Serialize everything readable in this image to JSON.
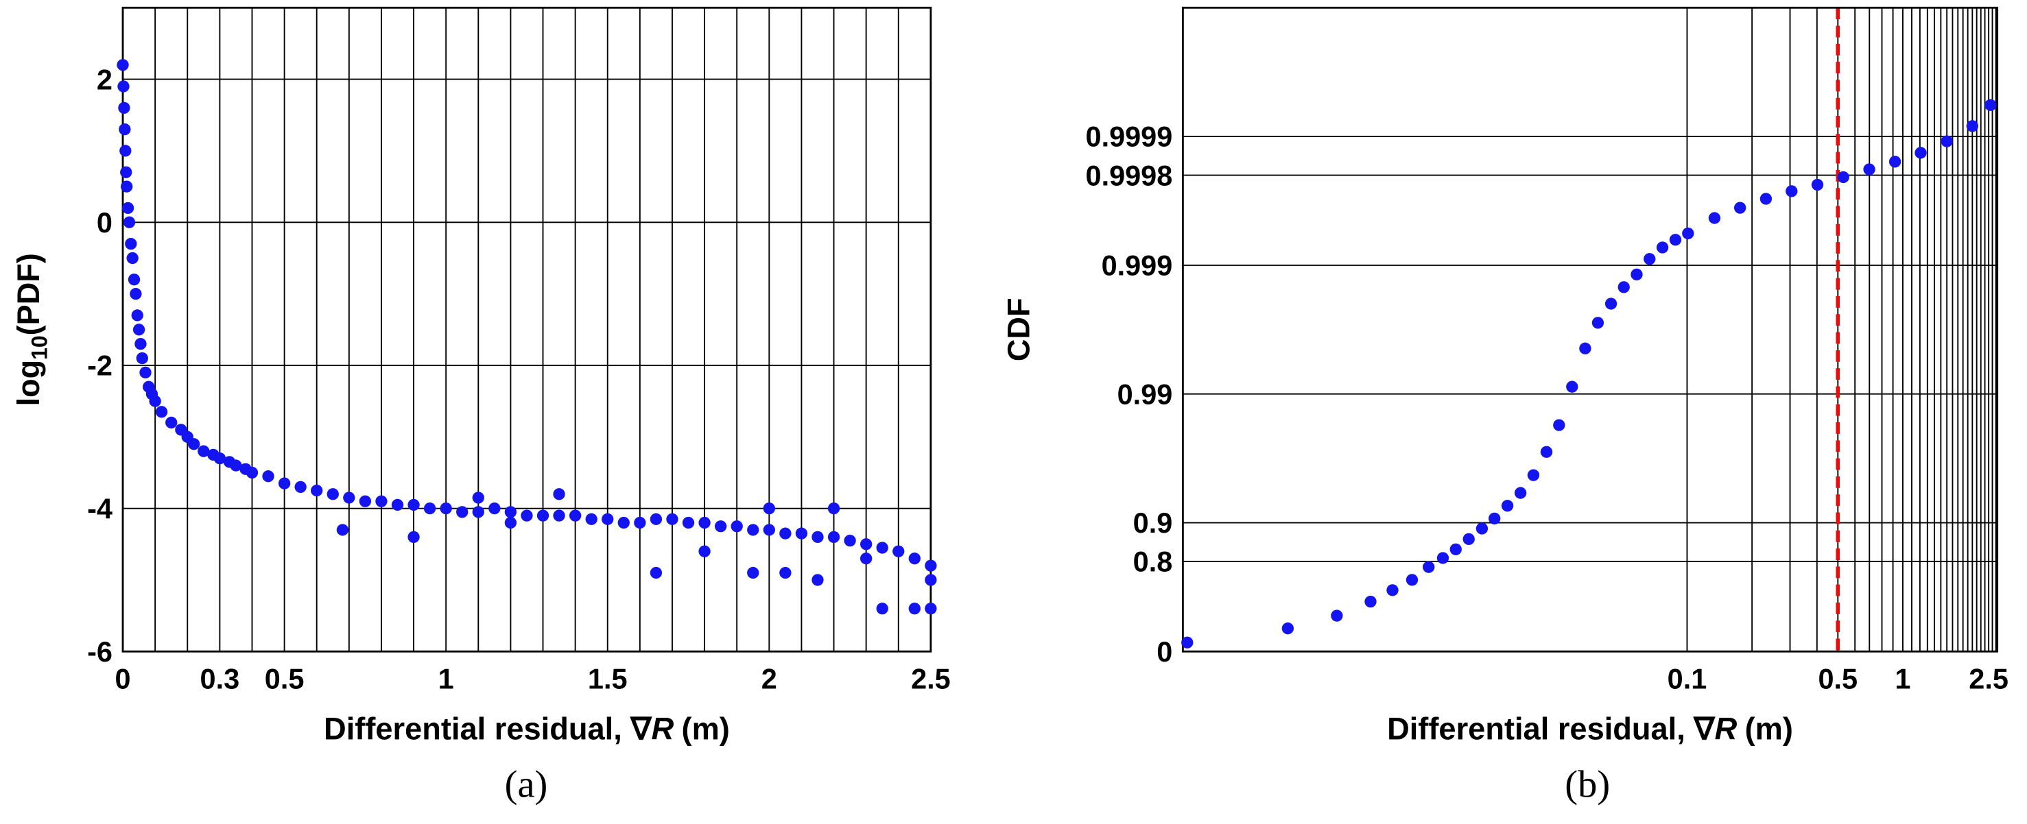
{
  "chart_data": [
    {
      "type": "scatter",
      "caption": "(a)",
      "xlabel": [
        "Differential residual, ∇",
        "R",
        "(m)"
      ],
      "ylabel": [
        "log",
        "10",
        "(PDF)"
      ],
      "color": "#1414f0",
      "xscale": "linear",
      "yscale": "linear",
      "xlim": [
        0,
        2.5
      ],
      "ylim": [
        -6,
        3
      ],
      "xticks": [
        0,
        0.3,
        0.5,
        1,
        1.5,
        2,
        2.5
      ],
      "yticks": [
        2,
        0,
        -2,
        -4,
        -6
      ],
      "xgrid": [
        0,
        0.1,
        0.2,
        0.3,
        0.4,
        0.5,
        0.6,
        0.7,
        0.8,
        0.9,
        1,
        1.1,
        1.2,
        1.3,
        1.4,
        1.5,
        1.6,
        1.7,
        1.8,
        1.9,
        2,
        2.1,
        2.2,
        2.3,
        2.4,
        2.5
      ],
      "x": [
        0,
        0.002,
        0.004,
        0.006,
        0.008,
        0.01,
        0.012,
        0.016,
        0.02,
        0.025,
        0.03,
        0.035,
        0.04,
        0.045,
        0.05,
        0.055,
        0.06,
        0.07,
        0.08,
        0.09,
        0.1,
        0.12,
        0.15,
        0.18,
        0.2,
        0.22,
        0.25,
        0.28,
        0.3,
        0.33,
        0.35,
        0.38,
        0.4,
        0.45,
        0.5,
        0.55,
        0.6,
        0.65,
        0.7,
        0.75,
        0.8,
        0.85,
        0.9,
        0.95,
        1.0,
        1.05,
        1.1,
        1.15,
        1.2,
        1.25,
        1.3,
        1.35,
        1.4,
        1.45,
        1.5,
        1.55,
        1.6,
        1.65,
        1.7,
        1.75,
        1.8,
        1.85,
        1.9,
        1.95,
        2.0,
        2.05,
        2.1,
        2.15,
        2.2,
        2.25,
        2.3,
        2.35,
        2.4,
        2.45,
        2.5,
        0.68,
        0.9,
        1.1,
        1.2,
        1.35,
        1.65,
        1.8,
        1.95,
        2.0,
        2.05,
        2.15,
        2.2,
        2.3,
        2.35,
        2.45,
        2.5,
        2.5
      ],
      "values": [
        2.2,
        1.9,
        1.6,
        1.3,
        1.0,
        0.7,
        0.5,
        0.2,
        0,
        -0.3,
        -0.5,
        -0.8,
        -1.0,
        -1.3,
        -1.5,
        -1.7,
        -1.9,
        -2.1,
        -2.3,
        -2.4,
        -2.5,
        -2.65,
        -2.8,
        -2.9,
        -3.0,
        -3.1,
        -3.2,
        -3.25,
        -3.3,
        -3.35,
        -3.4,
        -3.45,
        -3.5,
        -3.55,
        -3.65,
        -3.7,
        -3.75,
        -3.8,
        -3.85,
        -3.9,
        -3.9,
        -3.95,
        -3.95,
        -4.0,
        -4.0,
        -4.05,
        -4.05,
        -4.0,
        -4.05,
        -4.1,
        -4.1,
        -4.1,
        -4.1,
        -4.15,
        -4.15,
        -4.2,
        -4.2,
        -4.15,
        -4.15,
        -4.2,
        -4.2,
        -4.25,
        -4.25,
        -4.3,
        -4.3,
        -4.35,
        -4.35,
        -4.4,
        -4.4,
        -4.45,
        -4.5,
        -4.55,
        -4.6,
        -4.7,
        -4.8,
        -4.3,
        -4.4,
        -3.85,
        -4.2,
        -3.8,
        -4.9,
        -4.6,
        -4.9,
        -4.0,
        -4.9,
        -5.0,
        -4.0,
        -4.7,
        -5.4,
        -5.4,
        -5.4,
        -5.0
      ]
    },
    {
      "type": "scatter",
      "caption": "(b)",
      "xlabel": [
        "Differential residual, ∇",
        "R",
        "(m)"
      ],
      "ylabel": "CDF",
      "color": "#1414f0",
      "xscale": "log",
      "yscale": "complement-log",
      "xlim": [
        0.00046,
        2.74
      ],
      "ylim": [
        0,
        0.99999
      ],
      "xticks": [
        0.1,
        0.5,
        1,
        2.5
      ],
      "yticks": [
        0,
        0.8,
        0.9,
        0.99,
        0.999,
        0.9998,
        0.9999
      ],
      "xgrid": [
        0.1,
        0.2,
        0.3,
        0.4,
        0.5,
        0.6,
        0.7,
        0.8,
        0.9,
        1,
        1.1,
        1.2,
        1.3,
        1.4,
        1.5,
        1.6,
        1.7,
        1.8,
        1.9,
        2,
        2.1,
        2.2,
        2.3,
        2.4,
        2.5,
        2.6,
        2.7
      ],
      "marker_line": {
        "x": 0.5,
        "color": "#e01010"
      },
      "x": [
        0.000482,
        0.00141,
        0.00238,
        0.00341,
        0.00431,
        0.00531,
        0.00634,
        0.00738,
        0.00847,
        0.00973,
        0.0112,
        0.0128,
        0.0147,
        0.0169,
        0.0194,
        0.0223,
        0.0255,
        0.0293,
        0.0337,
        0.0386,
        0.0444,
        0.0509,
        0.0584,
        0.067,
        0.0769,
        0.0883,
        0.101,
        0.134,
        0.176,
        0.232,
        0.305,
        0.402,
        0.53,
        0.699,
        0.92,
        1.21,
        1.6,
        2.1,
        2.55
      ],
      "values": [
        0.148,
        0.338,
        0.473,
        0.59,
        0.666,
        0.722,
        0.779,
        0.812,
        0.839,
        0.866,
        0.889,
        0.9073,
        0.9262,
        0.9413,
        0.9573,
        0.9718,
        0.98254,
        0.99121,
        0.99557,
        0.9972,
        0.99801,
        0.99852,
        0.99882,
        0.999106,
        0.999272,
        0.999366,
        0.999434,
        0.99957,
        0.999642,
        0.999695,
        0.999734,
        0.999763,
        0.999793,
        0.99982,
        0.999843,
        0.999866,
        0.999891,
        0.999917,
        0.999943
      ]
    }
  ]
}
